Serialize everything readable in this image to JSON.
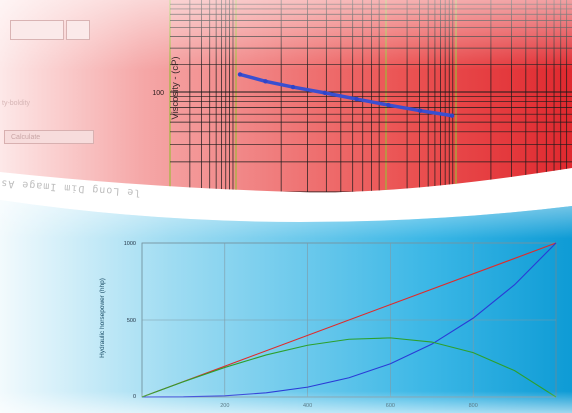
{
  "top_chart": {
    "ylabel": "Viscosity - (cP)",
    "y_tick": "100"
  },
  "bottom_chart": {
    "ylabel": "Hydraulic horsepower (hhp)",
    "y_ticks": [
      "1000",
      "500",
      "0"
    ],
    "x_ticks": [
      "200",
      "400",
      "600",
      "800"
    ]
  },
  "left_panel": {
    "calculate_label": "Calculate",
    "fragment_label": "ty-boldity"
  },
  "mirrored_text": "le Long Dim Image As Integer Dim Stage As String Dim Initial",
  "colors": {
    "red_bg": "#e43a3a",
    "blue_bg": "#1aa7dd",
    "grid_dark": "#1a1a1a",
    "grid_green": "#9fb83a",
    "line_red": "#e02a2a",
    "line_blue": "#2a3bd6",
    "line_green": "#2ca02c",
    "dot_blue": "#3a4fd0"
  },
  "chart_data": [
    {
      "type": "line",
      "title": "",
      "ylabel": "Viscosity - (cP)",
      "yscale": "log",
      "y_ticks": [
        100
      ],
      "series": [
        {
          "x": [
            0.0,
            0.12,
            0.25,
            0.4,
            0.55,
            0.7,
            0.85,
            1.0
          ],
          "y": [
            150,
            128,
            112,
            98,
            85,
            74,
            65,
            58
          ]
        }
      ]
    },
    {
      "type": "line",
      "title": "",
      "ylabel": "Hydraulic horsepower (hhp)",
      "ylim": [
        0,
        1000
      ],
      "y_ticks": [
        0,
        500,
        1000
      ],
      "xlim": [
        0,
        1000
      ],
      "x_ticks": [
        200,
        400,
        600,
        800
      ],
      "series": [
        {
          "color": "red",
          "x": [
            0,
            1000
          ],
          "y": [
            0,
            1000
          ]
        },
        {
          "color": "blue",
          "x": [
            0,
            100,
            200,
            300,
            400,
            500,
            600,
            700,
            800,
            900,
            1000
          ],
          "y": [
            0,
            1,
            8,
            27,
            64,
            125,
            216,
            343,
            512,
            729,
            1000
          ]
        },
        {
          "color": "green",
          "x": [
            0,
            100,
            200,
            300,
            400,
            500,
            600,
            700,
            800,
            900,
            1000
          ],
          "y": [
            0,
            99,
            192,
            273,
            336,
            375,
            384,
            357,
            288,
            171,
            0
          ]
        }
      ]
    }
  ]
}
